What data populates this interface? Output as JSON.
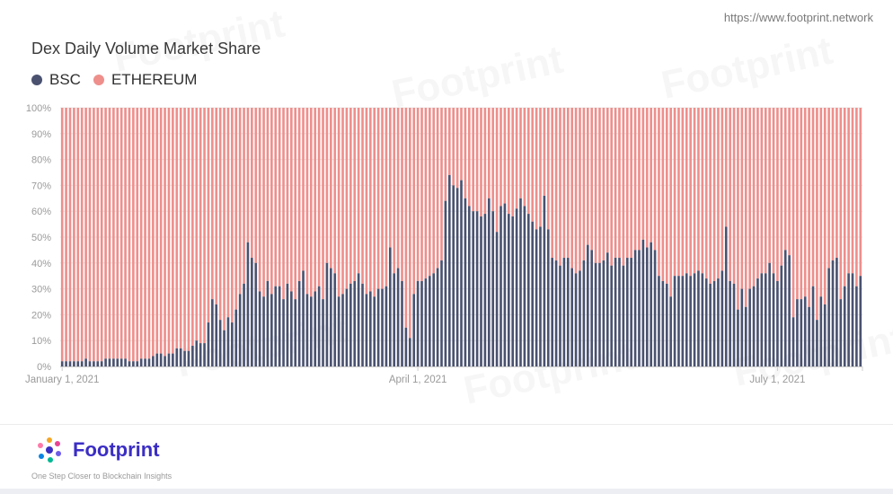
{
  "header": {
    "url": "https://www.footprint.network",
    "title": "Dex Daily Volume Market Share"
  },
  "legend": [
    {
      "label": "BSC",
      "color": "#4a5270"
    },
    {
      "label": "ETHEREUM",
      "color": "#ee8f8c"
    }
  ],
  "footer": {
    "brand": "Footprint",
    "tagline": "One Step Closer to Blockchain Insights"
  },
  "chart_data": {
    "type": "bar",
    "stacked": true,
    "normalized": true,
    "x_start": "2021-01-01",
    "x_ticks": [
      "January 1, 2021",
      "April 1, 2021",
      "July 1, 2021"
    ],
    "y_ticks": [
      "0%",
      "10%",
      "20%",
      "30%",
      "40%",
      "50%",
      "60%",
      "70%",
      "80%",
      "90%",
      "100%"
    ],
    "ylim": [
      0,
      100
    ],
    "series": [
      {
        "name": "BSC",
        "color": "#4a5270",
        "values": [
          2,
          2,
          2,
          2,
          2,
          2,
          3,
          2,
          2,
          2,
          2,
          3,
          3,
          3,
          3,
          3,
          3,
          2,
          2,
          2,
          3,
          3,
          3,
          4,
          5,
          5,
          4,
          5,
          5,
          7,
          7,
          6,
          6,
          8,
          10,
          9,
          9,
          17,
          26,
          24,
          18,
          14,
          19,
          17,
          22,
          28,
          32,
          48,
          42,
          40,
          29,
          27,
          33,
          28,
          31,
          31,
          26,
          32,
          29,
          26,
          33,
          37,
          28,
          27,
          29,
          31,
          26,
          40,
          38,
          36,
          27,
          28,
          30,
          32,
          33,
          36,
          32,
          28,
          29,
          27,
          30,
          30,
          31,
          46,
          36,
          38,
          33,
          15,
          11,
          28,
          33,
          33,
          34,
          35,
          36,
          38,
          41,
          64,
          74,
          70,
          69,
          72,
          65,
          62,
          60,
          60,
          58,
          59,
          65,
          60,
          52,
          62,
          63,
          59,
          58,
          61,
          65,
          62,
          59,
          56,
          53,
          54,
          66,
          53,
          42,
          41,
          39,
          42,
          42,
          38,
          36,
          37,
          41,
          47,
          45,
          40,
          40,
          41,
          44,
          39,
          42,
          42,
          39,
          42,
          42,
          45,
          45,
          49,
          46,
          48,
          45,
          35,
          33,
          32,
          27,
          35,
          35,
          35,
          36,
          35,
          36,
          37,
          36,
          34,
          32,
          33,
          34,
          37,
          54,
          33,
          32,
          22,
          30,
          23,
          30,
          31,
          34,
          36,
          36,
          40,
          36,
          33,
          39,
          45,
          43,
          19,
          26,
          26,
          27,
          23,
          31,
          18,
          27,
          24,
          38,
          41,
          42,
          26,
          31,
          36,
          36,
          31,
          35
        ]
      },
      {
        "name": "ETHEREUM",
        "color": "#ee8f8c",
        "values": "100 minus BSC share"
      }
    ]
  }
}
